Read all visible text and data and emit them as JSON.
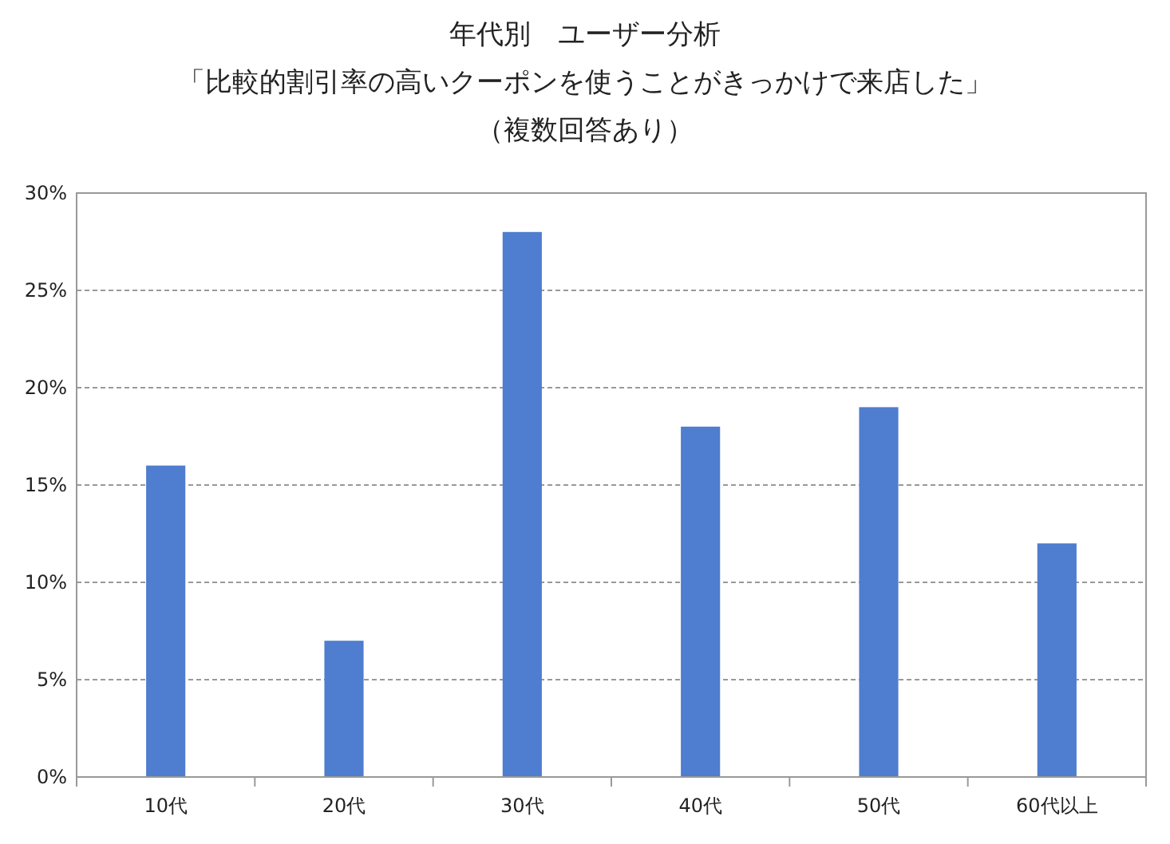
{
  "chart_data": {
    "type": "bar",
    "title": "年代別　ユーザー分析",
    "subtitle": "「比較的割引率の高いクーポンを使うことがきっかけで来店した」",
    "annotations": [
      "（複数回答あり）"
    ],
    "categories": [
      "10代",
      "20代",
      "30代",
      "40代",
      "50代",
      "60代以上"
    ],
    "values": [
      16,
      7,
      28,
      18,
      19,
      12
    ],
    "color": "#4f7dcf",
    "ylim": [
      0,
      30
    ],
    "yticks": [
      {
        "value": 0,
        "label": "0%"
      },
      {
        "value": 5,
        "label": "5%"
      },
      {
        "value": 10,
        "label": "10%"
      },
      {
        "value": 15,
        "label": "15%"
      },
      {
        "value": 20,
        "label": "20%"
      },
      {
        "value": 25,
        "label": "25%"
      },
      {
        "value": 30,
        "label": "30%"
      }
    ],
    "grid": "y"
  }
}
